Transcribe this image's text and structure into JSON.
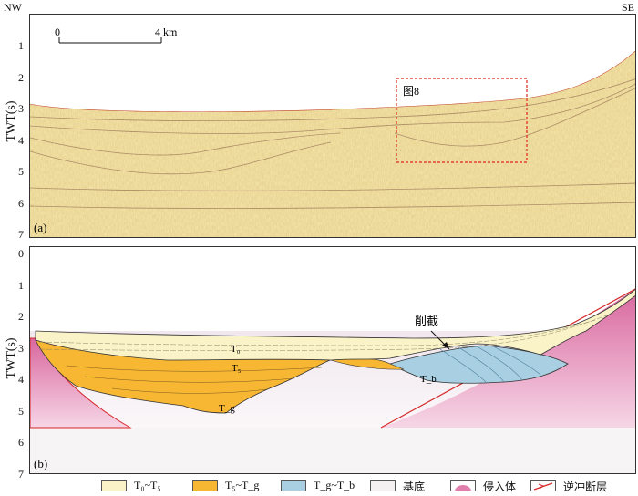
{
  "corners": {
    "left": "NW",
    "right": "SE"
  },
  "panel_a": {
    "tag": "(a)",
    "ylabel": "TWT(s)",
    "yticks": [
      "1",
      "2",
      "3",
      "4",
      "5",
      "6",
      "7"
    ],
    "scale_bar": {
      "start": "0",
      "end": "4 km"
    },
    "inset_label": "图8"
  },
  "panel_b": {
    "tag": "(b)",
    "ylabel": "TWT(s)",
    "yticks": [
      "0",
      "1",
      "2",
      "3",
      "4",
      "5",
      "6",
      "7"
    ],
    "labels": {
      "t0": "T₀",
      "t5": "T₅",
      "tg": "T_g",
      "tb": "T_b",
      "truncation": "削截"
    }
  },
  "legend": [
    {
      "label": "T₀~T₅",
      "color": "#fbf3c8"
    },
    {
      "label": "T₅~T_g",
      "color": "#f7b733"
    },
    {
      "label": "T_g~T_b",
      "color": "#a9cfe3"
    },
    {
      "label": "基底",
      "color": "#f4f0f2"
    },
    {
      "label": "侵入体",
      "color": "#e07fad"
    },
    {
      "label": "逆冲断层",
      "color": "#d62728"
    }
  ]
}
